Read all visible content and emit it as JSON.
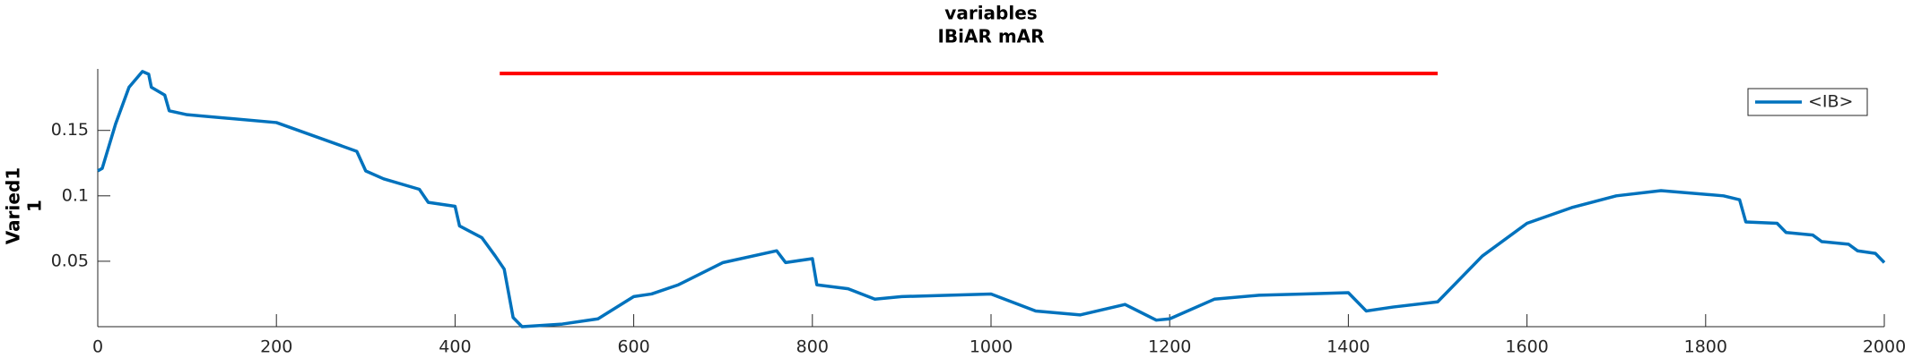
{
  "chart_data": {
    "type": "line",
    "title": [
      "variables",
      "IBiAR mAR"
    ],
    "ylabel": [
      "Varied1",
      "1"
    ],
    "xlim": [
      0,
      2000
    ],
    "xticks": [
      0,
      200,
      400,
      600,
      800,
      1000,
      1200,
      1400,
      1600,
      1800,
      2000
    ],
    "ylim": [
      0,
      0.197
    ],
    "yticks": [
      0.05,
      0.1,
      0.15
    ],
    "legend": "northeast",
    "series": [
      {
        "name": "<IB>",
        "color": "#0072bd",
        "x": [
          0,
          5,
          20,
          35,
          50,
          57,
          60,
          75,
          80,
          100,
          200,
          290,
          300,
          320,
          360,
          370,
          400,
          405,
          430,
          445,
          455,
          465,
          475,
          520,
          560,
          600,
          620,
          650,
          700,
          760,
          770,
          800,
          805,
          840,
          870,
          900,
          1000,
          1050,
          1100,
          1150,
          1185,
          1200,
          1250,
          1300,
          1350,
          1400,
          1420,
          1450,
          1500,
          1550,
          1600,
          1650,
          1700,
          1750,
          1820,
          1838,
          1845,
          1880,
          1890,
          1920,
          1930,
          1960,
          1970,
          1990,
          2000
        ],
        "values": [
          0.119,
          0.121,
          0.155,
          0.183,
          0.195,
          0.193,
          0.183,
          0.177,
          0.165,
          0.162,
          0.156,
          0.134,
          0.119,
          0.113,
          0.105,
          0.095,
          0.092,
          0.077,
          0.068,
          0.054,
          0.044,
          0.007,
          0.0,
          0.002,
          0.006,
          0.023,
          0.025,
          0.032,
          0.049,
          0.058,
          0.049,
          0.052,
          0.032,
          0.029,
          0.021,
          0.023,
          0.025,
          0.012,
          0.009,
          0.017,
          0.005,
          0.006,
          0.021,
          0.024,
          0.025,
          0.026,
          0.012,
          0.015,
          0.019,
          0.054,
          0.079,
          0.091,
          0.1,
          0.104,
          0.1,
          0.097,
          0.08,
          0.079,
          0.072,
          0.07,
          0.065,
          0.063,
          0.058,
          0.056,
          0.049
        ]
      }
    ],
    "hline": {
      "color": "#ff0000",
      "x": [
        450,
        1500
      ],
      "values": [
        0.1935,
        0.1935
      ]
    }
  }
}
